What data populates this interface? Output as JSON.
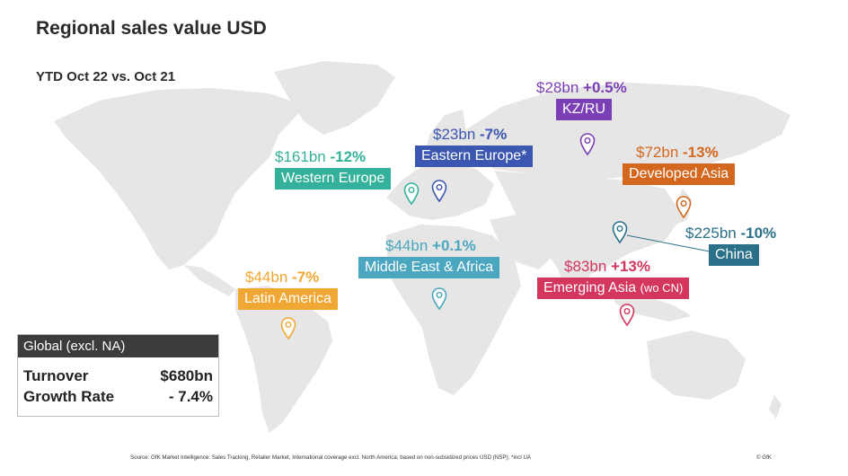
{
  "title": "Regional sales value USD",
  "subtitle": "YTD Oct 22 vs. Oct 21",
  "regions": {
    "kzru": {
      "value": "$28bn",
      "change": "+0.5%",
      "label": "KZ/RU",
      "color": "#7b3fb5"
    },
    "eastern": {
      "value": "$23bn",
      "change": "-7%",
      "label": "Eastern Europe*",
      "color": "#3b57b0"
    },
    "western": {
      "value": "$161bn",
      "change": "-12%",
      "label": "Western Europe",
      "color": "#34b19a"
    },
    "devasia": {
      "value": "$72bn",
      "change": "-13%",
      "label": "Developed Asia",
      "color": "#d4671e"
    },
    "china": {
      "value": "$225bn",
      "change": "-10%",
      "label": "China",
      "color": "#2a7088"
    },
    "mea": {
      "value": "$44bn",
      "change": "+0.1%",
      "label": "Middle East & Africa",
      "color": "#4ba6c0"
    },
    "emerging": {
      "value": "$83bn",
      "change": "+13%",
      "label": "Emerging Asia",
      "label_suffix": "(wo CN)",
      "color": "#d4365e"
    },
    "latam": {
      "value": "$44bn",
      "change": "-7%",
      "label": "Latin America",
      "color": "#f0a733"
    }
  },
  "global": {
    "heading": "Global (excl. NA)",
    "turnover_label": "Turnover",
    "turnover_value": "$680bn",
    "growth_label": "Growth Rate",
    "growth_value": "- 7.4%"
  },
  "footer": "Source: GfK Market Intelligence: Sales Tracking, Retailer Market, International coverage excl. North America; based on non-subsidized prices USD (NSP); *incl UA",
  "copyright": "© GfK"
}
